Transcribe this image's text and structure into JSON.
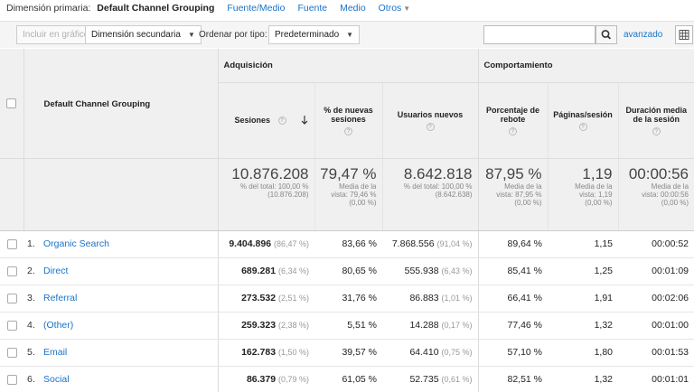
{
  "primary_dimension": {
    "label": "Dimensión primaria:",
    "selected": "Default Channel Grouping",
    "links": [
      "Fuente/Medio",
      "Fuente",
      "Medio",
      "Otros"
    ]
  },
  "toolbar": {
    "chart_button": "Incluir en gráfico",
    "secondary_dimension": "Dimensión secundaria",
    "sort_label": "Ordenar por tipo:",
    "sort_value": "Predeterminado",
    "search_value": "",
    "advanced_link": "avanzado"
  },
  "table": {
    "dimension_header": "Default Channel Grouping",
    "groups": {
      "acquisition": "Adquisición",
      "behavior": "Comportamiento"
    },
    "columns": [
      "Sesiones",
      "% de nuevas sesiones",
      "Usuarios nuevos",
      "Porcentaje de rebote",
      "Páginas/sesión",
      "Duración media de la sesión"
    ],
    "summary": [
      {
        "value": "10.876.208",
        "sub1": "% del total: 100,00 %",
        "sub2": "(10.876.208)",
        "sub3": ""
      },
      {
        "value": "79,47 %",
        "sub1": "Media de la",
        "sub2": "vista: 79,46 %",
        "sub3": "(0,00 %)"
      },
      {
        "value": "8.642.818",
        "sub1": "% del total: 100,00 %",
        "sub2": "(8.642.638)",
        "sub3": ""
      },
      {
        "value": "87,95 %",
        "sub1": "Media de la",
        "sub2": "vista: 87,95 %",
        "sub3": "(0,00 %)"
      },
      {
        "value": "1,19",
        "sub1": "Media de la",
        "sub2": "vista: 1,19",
        "sub3": "(0,00 %)"
      },
      {
        "value": "00:00:56",
        "sub1": "Media de la",
        "sub2": "vista: 00:00:56",
        "sub3": "(0,00 %)"
      }
    ],
    "rows": [
      {
        "index": "1.",
        "channel": "Organic Search",
        "sessions": "9.404.896",
        "sessions_pct": "(86,47 %)",
        "new_pct": "83,66 %",
        "new_users": "7.868.556",
        "new_users_pct": "(91,04 %)",
        "bounce": "89,64 %",
        "pages": "1,15",
        "duration": "00:00:52"
      },
      {
        "index": "2.",
        "channel": "Direct",
        "sessions": "689.281",
        "sessions_pct": "(6,34 %)",
        "new_pct": "80,65 %",
        "new_users": "555.938",
        "new_users_pct": "(6,43 %)",
        "bounce": "85,41 %",
        "pages": "1,25",
        "duration": "00:01:09"
      },
      {
        "index": "3.",
        "channel": "Referral",
        "sessions": "273.532",
        "sessions_pct": "(2,51 %)",
        "new_pct": "31,76 %",
        "new_users": "86.883",
        "new_users_pct": "(1,01 %)",
        "bounce": "66,41 %",
        "pages": "1,91",
        "duration": "00:02:06"
      },
      {
        "index": "4.",
        "channel": "(Other)",
        "sessions": "259.323",
        "sessions_pct": "(2,38 %)",
        "new_pct": "5,51 %",
        "new_users": "14.288",
        "new_users_pct": "(0,17 %)",
        "bounce": "77,46 %",
        "pages": "1,32",
        "duration": "00:01:00"
      },
      {
        "index": "5.",
        "channel": "Email",
        "sessions": "162.783",
        "sessions_pct": "(1,50 %)",
        "new_pct": "39,57 %",
        "new_users": "64.410",
        "new_users_pct": "(0,75 %)",
        "bounce": "57,10 %",
        "pages": "1,80",
        "duration": "00:01:53"
      },
      {
        "index": "6.",
        "channel": "Social",
        "sessions": "86.379",
        "sessions_pct": "(0,79 %)",
        "new_pct": "61,05 %",
        "new_users": "52.735",
        "new_users_pct": "(0,61 %)",
        "bounce": "82,51 %",
        "pages": "1,32",
        "duration": "00:01:01"
      }
    ]
  },
  "icons": {
    "help": "?",
    "sort_desc": "arrow-down-icon",
    "search": "magnifier-icon",
    "grid": "grid-view-icon"
  },
  "colors": {
    "link": "#1a73c9",
    "header_bg": "#f0f0f0"
  }
}
